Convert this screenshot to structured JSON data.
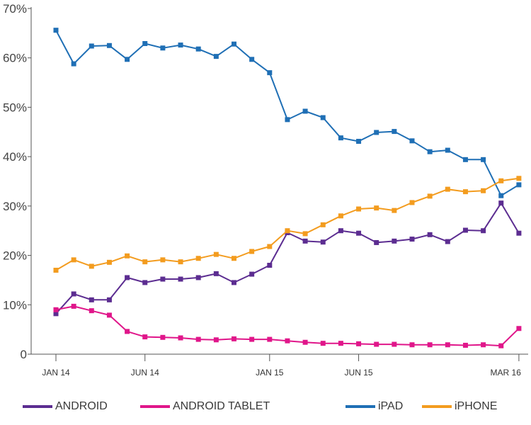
{
  "chart_data": {
    "type": "line",
    "title": "",
    "xlabel": "",
    "ylabel": "",
    "ylim": [
      0,
      70
    ],
    "y_ticks": [
      0,
      10,
      20,
      30,
      40,
      50,
      60,
      70
    ],
    "y_tick_labels": [
      "0",
      "10%",
      "20%",
      "30%",
      "40%",
      "50%",
      "60%",
      "70%"
    ],
    "x": [
      "Jan 14",
      "Feb 14",
      "Mar 14",
      "Apr 14",
      "May 14",
      "Jun 14",
      "Jul 14",
      "Aug 14",
      "Sep 14",
      "Oct 14",
      "Nov 14",
      "Dec 14",
      "Jan 15",
      "Feb 15",
      "Mar 15",
      "Apr 15",
      "May 15",
      "Jun 15",
      "Jul 15",
      "Aug 15",
      "Sep 15",
      "Oct 15",
      "Nov 15",
      "Dec 15",
      "Jan 16",
      "Feb 16",
      "Mar 16"
    ],
    "x_tick_labels": [
      {
        "index": 0,
        "label": "JAN 14"
      },
      {
        "index": 5,
        "label": "JUN 14"
      },
      {
        "index": 12,
        "label": "JAN 15"
      },
      {
        "index": 17,
        "label": "JUN 15"
      },
      {
        "index": 26,
        "label": "MAR 16"
      }
    ],
    "legend_position": "bottom",
    "grid": false,
    "series": [
      {
        "name": "ANDROID",
        "color": "#5c2d91",
        "values": [
          8.2,
          12.2,
          11,
          11,
          15.5,
          14.5,
          15.2,
          15.2,
          15.5,
          16.3,
          14.5,
          16.2,
          18,
          24.6,
          22.9,
          22.7,
          25,
          24.5,
          22.6,
          22.9,
          23.3,
          24.2,
          22.8,
          25.1,
          25,
          30.6,
          24.5
        ]
      },
      {
        "name": "ANDROID TABLET",
        "color": "#e0168a",
        "values": [
          9,
          9.7,
          8.8,
          7.9,
          4.6,
          3.5,
          3.4,
          3.3,
          3,
          2.9,
          3.1,
          3,
          3,
          2.7,
          2.4,
          2.2,
          2.2,
          2.1,
          2,
          2,
          1.9,
          1.9,
          1.9,
          1.8,
          1.9,
          1.7,
          5.2
        ]
      },
      {
        "name": "iPAD",
        "color": "#1f6fb5",
        "values": [
          65.6,
          58.8,
          62.4,
          62.5,
          59.7,
          62.9,
          62,
          62.6,
          61.8,
          60.3,
          62.8,
          59.7,
          57,
          47.5,
          49.2,
          47.9,
          43.8,
          43.1,
          44.9,
          45.1,
          43.2,
          41,
          41.3,
          39.4,
          39.4,
          32.1,
          34.3
        ]
      },
      {
        "name": "iPHONE",
        "color": "#f39c1f",
        "values": [
          17,
          19.1,
          17.8,
          18.6,
          19.9,
          18.7,
          19.1,
          18.7,
          19.4,
          20.2,
          19.4,
          20.8,
          21.8,
          25,
          24.4,
          26.2,
          28,
          29.4,
          29.6,
          29.1,
          30.7,
          32,
          33.4,
          32.9,
          33.1,
          35.1,
          35.6
        ]
      }
    ]
  }
}
